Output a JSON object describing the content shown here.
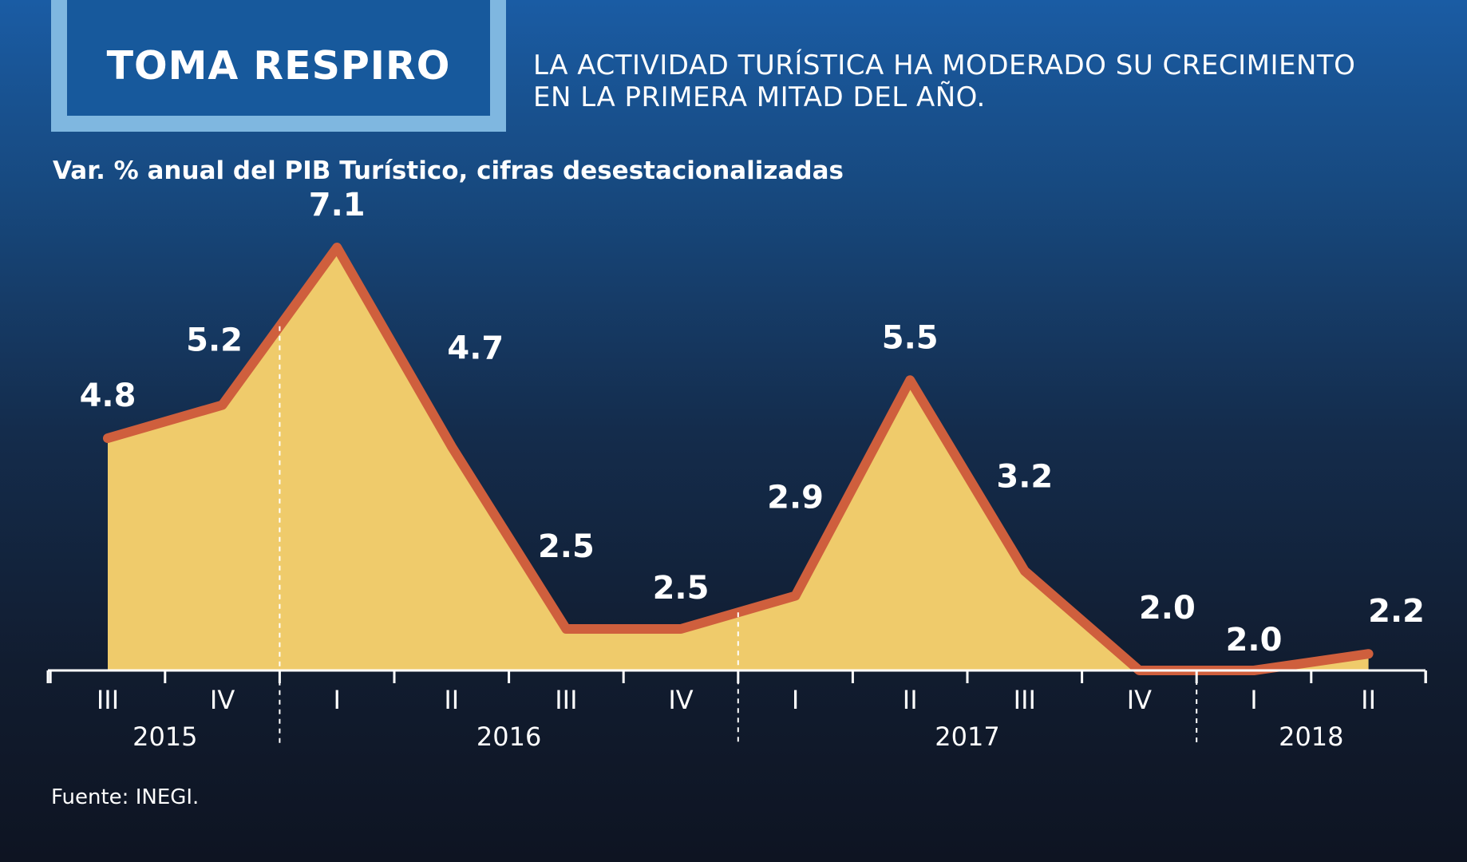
{
  "header": {
    "title": "TOMA RESPIRO",
    "headline_line1": "LA ACTIVIDAD TURÍSTICA HA MODERADO SU CRECIMIENTO",
    "headline_line2": "EN LA PRIMERA MITAD DEL AÑO."
  },
  "subtitle": "Var. % anual del PIB Turístico, cifras desestacionalizadas",
  "source": "Fuente: INEGI.",
  "colors": {
    "fill": "#efcb6b",
    "line": "#cf5f3d",
    "title_frame": "#7fb7e0",
    "title_bg": "#17599c"
  },
  "chart_data": {
    "type": "area",
    "categories": [
      "III",
      "IV",
      "I",
      "II",
      "III",
      "IV",
      "I",
      "II",
      "III",
      "IV",
      "I",
      "II"
    ],
    "years": [
      {
        "label": "2015",
        "quarters": [
          "III",
          "IV"
        ]
      },
      {
        "label": "2016",
        "quarters": [
          "I",
          "II",
          "III",
          "IV"
        ]
      },
      {
        "label": "2017",
        "quarters": [
          "I",
          "II",
          "III",
          "IV"
        ]
      },
      {
        "label": "2018",
        "quarters": [
          "I",
          "II"
        ]
      }
    ],
    "values": [
      4.8,
      5.2,
      7.1,
      4.7,
      2.5,
      2.5,
      2.9,
      5.5,
      3.2,
      2.0,
      2.0,
      2.2
    ],
    "labels": [
      "4.8",
      "5.2",
      "7.1",
      "4.7",
      "2.5",
      "2.5",
      "2.9",
      "5.5",
      "3.2",
      "2.0",
      "2.0",
      "2.2"
    ],
    "ylim": [
      2.0,
      7.4
    ],
    "grid": false,
    "legend": "none"
  }
}
